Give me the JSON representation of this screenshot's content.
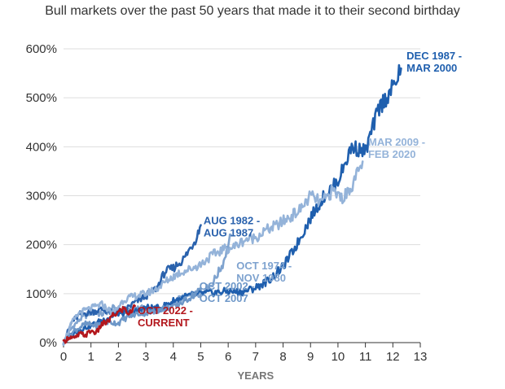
{
  "chart_data": {
    "type": "line",
    "title": "Bull markets over the past 50 years that made it to their second birthday",
    "xlabel": "YEARS",
    "ylabel": "",
    "xlim": [
      0,
      13
    ],
    "ylim": [
      0,
      600
    ],
    "x_ticks": [
      "0",
      "1",
      "2",
      "3",
      "4",
      "5",
      "6",
      "7",
      "8",
      "9",
      "10",
      "11",
      "12",
      "13"
    ],
    "y_ticks": [
      "0%",
      "100%",
      "200%",
      "300%",
      "400%",
      "500%",
      "600%"
    ],
    "grid": true,
    "series": [
      {
        "name": "OCT 1974 - NOV 1980",
        "label_lines": [
          "OCT 1974 -",
          "NOV 1980"
        ],
        "color": "#7fa3cf",
        "x": [
          0,
          0.3,
          0.6,
          1.0,
          1.4,
          1.8,
          2.2,
          2.6,
          3.0,
          3.4,
          3.8,
          4.2,
          4.6,
          5.0,
          5.4,
          5.8,
          6.1
        ],
        "y": [
          0,
          30,
          48,
          62,
          58,
          70,
          62,
          72,
          68,
          62,
          73,
          88,
          95,
          102,
          118,
          160,
          220
        ]
      },
      {
        "name": "AUG 1982 - AUG 1987",
        "label_lines": [
          "AUG 1982 -",
          "AUG 1987"
        ],
        "color": "#2a62ad",
        "x": [
          0,
          0.3,
          0.6,
          1.0,
          1.4,
          1.8,
          2.2,
          2.6,
          3.0,
          3.4,
          3.7,
          4.0,
          4.4,
          4.8,
          5.0
        ],
        "y": [
          0,
          42,
          58,
          62,
          68,
          60,
          66,
          82,
          95,
          112,
          145,
          152,
          172,
          210,
          240
        ]
      },
      {
        "name": "DEC 1987 - MAR 2000",
        "label_lines": [
          "DEC 1987 -",
          "MAR 2000"
        ],
        "color": "#1f5fae",
        "x": [
          0,
          0.5,
          1.0,
          1.5,
          2.0,
          2.5,
          3.0,
          3.5,
          4.0,
          4.5,
          5.0,
          5.5,
          6.0,
          6.5,
          7.0,
          7.5,
          8.0,
          8.5,
          9.0,
          9.5,
          10.0,
          10.5,
          11.0,
          11.5,
          12.0,
          12.3
        ],
        "y": [
          0,
          25,
          35,
          48,
          60,
          60,
          72,
          70,
          85,
          95,
          100,
          102,
          105,
          103,
          112,
          128,
          155,
          200,
          255,
          300,
          330,
          400,
          390,
          480,
          520,
          560
        ]
      },
      {
        "name": "OCT 2002 - OCT 2007",
        "label_lines": [
          "OCT 2002 -",
          "OCT 2007"
        ],
        "color": "#6d97c8",
        "x": [
          0,
          0.4,
          0.8,
          1.2,
          1.6,
          2.0,
          2.4,
          2.8,
          3.2,
          3.6,
          4.0,
          4.4,
          4.8,
          5.0
        ],
        "y": [
          0,
          25,
          38,
          35,
          42,
          40,
          55,
          60,
          62,
          70,
          72,
          85,
          100,
          108
        ]
      },
      {
        "name": "MAR 2009 - FEB 2020",
        "label_lines": [
          "MAR 2009 -",
          "FEB 2020"
        ],
        "color": "#94b3d9",
        "x": [
          0,
          0.3,
          0.6,
          1.0,
          1.4,
          1.8,
          2.2,
          2.6,
          3.0,
          3.4,
          3.8,
          4.2,
          4.6,
          5.0,
          5.4,
          5.8,
          6.2,
          6.6,
          7.0,
          7.4,
          7.8,
          8.2,
          8.6,
          9.0,
          9.4,
          9.8,
          10.2,
          10.6,
          10.9
        ],
        "y": [
          0,
          40,
          62,
          70,
          78,
          60,
          88,
          95,
          100,
          110,
          128,
          142,
          150,
          160,
          178,
          190,
          195,
          210,
          215,
          230,
          240,
          255,
          270,
          300,
          285,
          310,
          295,
          330,
          370
        ]
      },
      {
        "name": "OCT 2022 - CURRENT",
        "label_lines": [
          "OCT 2022 -",
          "CURRENT"
        ],
        "color": "#b3171d",
        "x": [
          0,
          0.2,
          0.4,
          0.6,
          0.8,
          1.0,
          1.2,
          1.4,
          1.6,
          1.8,
          2.0,
          2.2,
          2.4,
          2.6
        ],
        "y": [
          0,
          12,
          8,
          18,
          15,
          24,
          20,
          38,
          42,
          55,
          62,
          70,
          58,
          75
        ]
      }
    ]
  }
}
